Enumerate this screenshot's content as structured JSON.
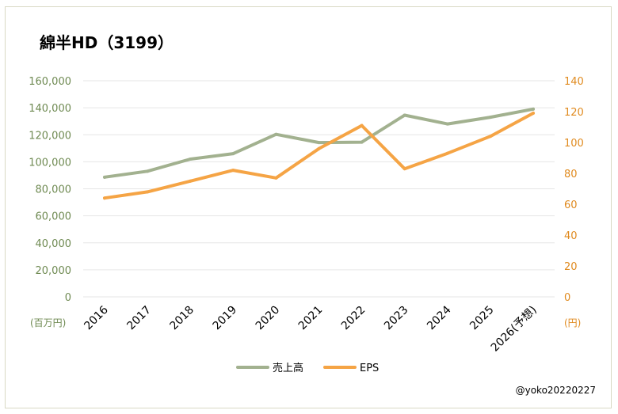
{
  "title": "綿半HD（3199）",
  "credit": "@yoko20220227",
  "chart_data": {
    "type": "line",
    "title": "綿半HD（3199）",
    "categories": [
      "2016",
      "2017",
      "2018",
      "2019",
      "2020",
      "2021",
      "2022",
      "2023",
      "2024",
      "2025",
      "2026(予想)"
    ],
    "series": [
      {
        "name": "売上高",
        "axis": "left",
        "color": "#a2b18f",
        "values": [
          88600,
          93000,
          102000,
          106000,
          120300,
          114200,
          114500,
          134500,
          128000,
          133000,
          139000
        ]
      },
      {
        "name": "EPS",
        "axis": "right",
        "color": "#f5a445",
        "values": [
          64,
          68,
          75,
          82,
          77,
          96,
          111,
          83,
          93,
          104,
          119
        ]
      }
    ],
    "y_left": {
      "label": "(百万円)",
      "ylim": [
        0,
        160000
      ],
      "ticks": [
        "0",
        "20,000",
        "40,000",
        "60,000",
        "80,000",
        "100,000",
        "120,000",
        "140,000",
        "160,000"
      ],
      "color": "#6f8a52"
    },
    "y_right": {
      "label": "(円)",
      "ylim": [
        0,
        140
      ],
      "ticks": [
        "0",
        "20",
        "40",
        "60",
        "80",
        "100",
        "120",
        "140"
      ],
      "color": "#e08a1e"
    },
    "grid": true,
    "legend": "bottom-center"
  }
}
